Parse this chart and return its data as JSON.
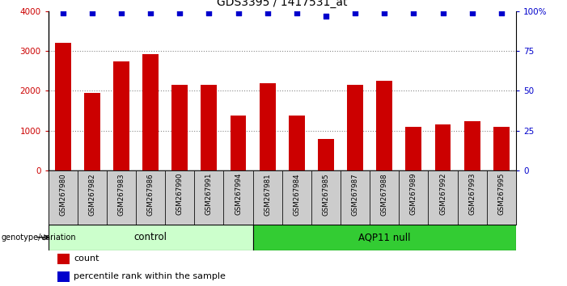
{
  "title": "GDS3395 / 1417531_at",
  "categories": [
    "GSM267980",
    "GSM267982",
    "GSM267983",
    "GSM267986",
    "GSM267990",
    "GSM267991",
    "GSM267994",
    "GSM267981",
    "GSM267984",
    "GSM267985",
    "GSM267987",
    "GSM267988",
    "GSM267989",
    "GSM267992",
    "GSM267993",
    "GSM267995"
  ],
  "counts": [
    3200,
    1950,
    2750,
    2920,
    2150,
    2150,
    1380,
    2200,
    1370,
    780,
    2150,
    2250,
    1100,
    1150,
    1230,
    1090
  ],
  "percentile_ranks": [
    99,
    99,
    99,
    99,
    99,
    99,
    99,
    99,
    99,
    97,
    99,
    99,
    99,
    99,
    99,
    99
  ],
  "bar_color": "#cc0000",
  "dot_color": "#0000cc",
  "ylim_left": [
    0,
    4000
  ],
  "ylim_right": [
    0,
    100
  ],
  "yticks_left": [
    0,
    1000,
    2000,
    3000,
    4000
  ],
  "yticks_right": [
    0,
    25,
    50,
    75,
    100
  ],
  "ytick_labels_right": [
    "0",
    "25",
    "50",
    "75",
    "100%"
  ],
  "n_control": 7,
  "control_label": "control",
  "aqp11_label": "AQP11 null",
  "genotype_label": "genotype/variation",
  "legend_count_label": "count",
  "legend_pct_label": "percentile rank within the sample",
  "control_color": "#ccffcc",
  "aqp11_color": "#33cc33",
  "xticklabel_bg": "#cccccc",
  "grid_color": "#888888",
  "title_fontsize": 10,
  "tick_fontsize": 7.5,
  "bar_width": 0.55
}
